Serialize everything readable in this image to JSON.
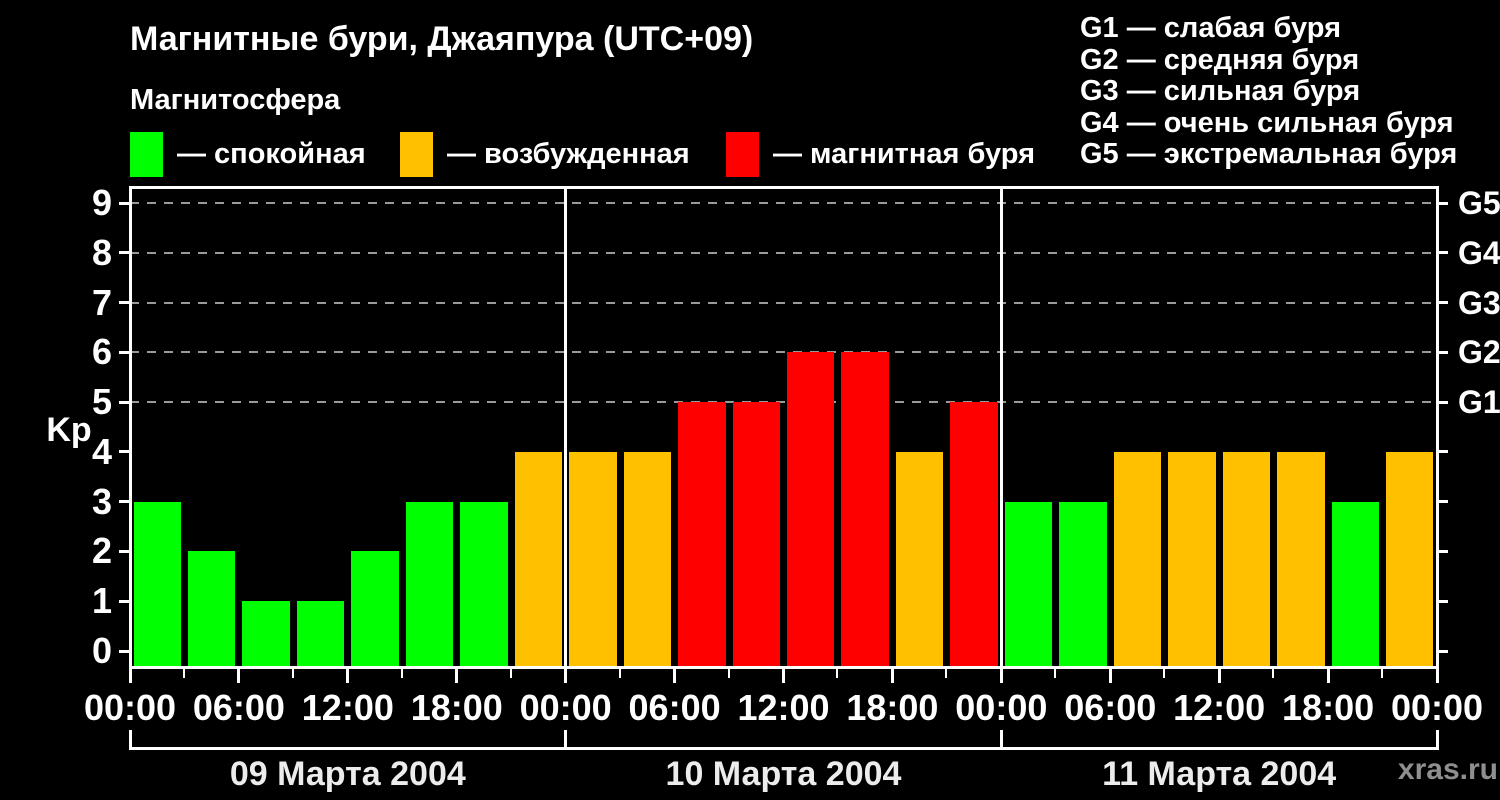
{
  "header": {
    "title": "Магнитные бури, Джаяпура (UTC+09)",
    "subtitle": "Магнитосфера"
  },
  "legend": {
    "items": [
      {
        "name": "calm",
        "label": "— спокойная",
        "color": "#00ff00"
      },
      {
        "name": "excited",
        "label": "— возбужденная",
        "color": "#ffc000"
      },
      {
        "name": "storm",
        "label": "— магнитная буря",
        "color": "#ff0000"
      }
    ]
  },
  "g_legend": [
    "G1 — слабая буря",
    "G2 — средняя буря",
    "G3 — сильная буря",
    "G4 — очень сильная буря",
    "G5 — экстремальная буря"
  ],
  "watermark": "xras.ru",
  "chart_data": {
    "type": "bar",
    "title": "Магнитные бури, Джаяпура (UTC+09)",
    "ylabel": "Kp",
    "ylim": [
      0,
      9
    ],
    "yticks": [
      0,
      1,
      2,
      3,
      4,
      5,
      6,
      7,
      8,
      9
    ],
    "grid_values": [
      5,
      6,
      7,
      8,
      9
    ],
    "grid_style": "dashed",
    "right_axis_labels": [
      {
        "value": 5,
        "label": "G1"
      },
      {
        "value": 6,
        "label": "G2"
      },
      {
        "value": 7,
        "label": "G3"
      },
      {
        "value": 8,
        "label": "G4"
      },
      {
        "value": 9,
        "label": "G5"
      }
    ],
    "hours_per_bar": 3,
    "x_tick_interval_hours": 3,
    "x_label_interval_hours": 6,
    "x_time_labels_cycle": [
      "00:00",
      "06:00",
      "12:00",
      "18:00"
    ],
    "days": [
      {
        "date": "09 Марта 2004",
        "values": [
          3,
          2,
          1,
          1,
          2,
          3,
          3,
          4
        ]
      },
      {
        "date": "10 Марта 2004",
        "values": [
          4,
          4,
          5,
          5,
          6,
          6,
          4,
          5
        ]
      },
      {
        "date": "11 Марта 2004",
        "values": [
          3,
          3,
          4,
          4,
          4,
          4,
          3,
          4
        ]
      }
    ],
    "color_mapping": {
      "calm_kp_max": 3,
      "excited_kp_max": 4,
      "storm_kp_min": 5
    },
    "colors": {
      "calm": "#00ff00",
      "excited": "#ffc000",
      "storm": "#ff0000"
    },
    "grid_color": "#9a9a9a",
    "axis_color": "#ffffff",
    "background": "#000000",
    "legend_position": "top"
  }
}
